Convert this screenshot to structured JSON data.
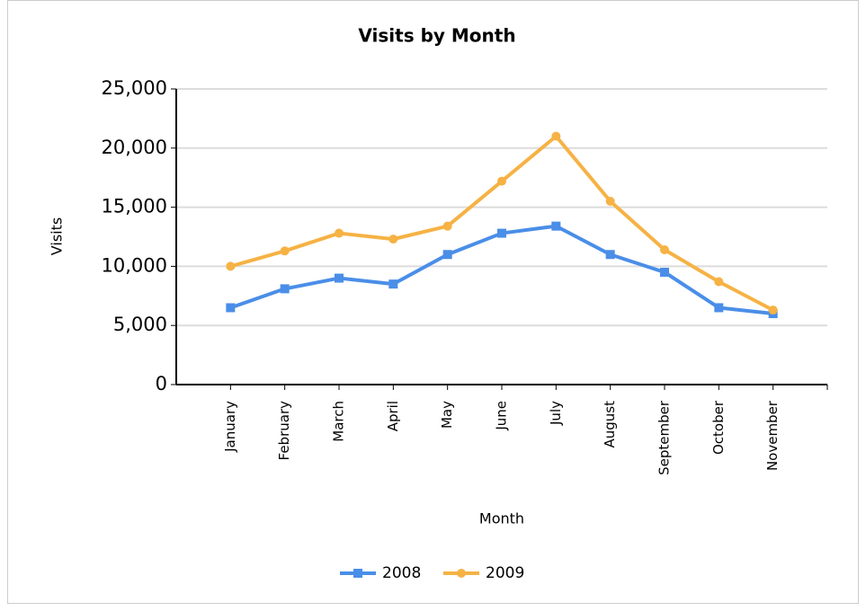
{
  "chart_data": {
    "type": "line",
    "title": "Visits by Month",
    "x_label": "Month",
    "y_label": "Visits",
    "categories": [
      "January",
      "February",
      "March",
      "April",
      "May",
      "June",
      "July",
      "August",
      "September",
      "October",
      "November"
    ],
    "series": [
      {
        "name": "2008",
        "color": "#4a8ee8",
        "marker": "square",
        "values": [
          6500,
          8100,
          9000,
          8500,
          11000,
          12800,
          13400,
          11000,
          9500,
          6500,
          6000
        ]
      },
      {
        "name": "2009",
        "color": "#f6b244",
        "marker": "circle",
        "values": [
          10000,
          11300,
          12800,
          12300,
          13400,
          17200,
          21000,
          15500,
          11400,
          8700,
          6300
        ]
      }
    ],
    "ylim": [
      0,
      25000
    ],
    "yticks": [
      {
        "value": 0,
        "label": "0"
      },
      {
        "value": 5000,
        "label": "5,000"
      },
      {
        "value": 10000,
        "label": "10,000"
      },
      {
        "value": 15000,
        "label": "15,000"
      },
      {
        "value": 20000,
        "label": "20,000"
      },
      {
        "value": 25000,
        "label": "25,000"
      }
    ],
    "grid": true,
    "legend": "bottom"
  }
}
